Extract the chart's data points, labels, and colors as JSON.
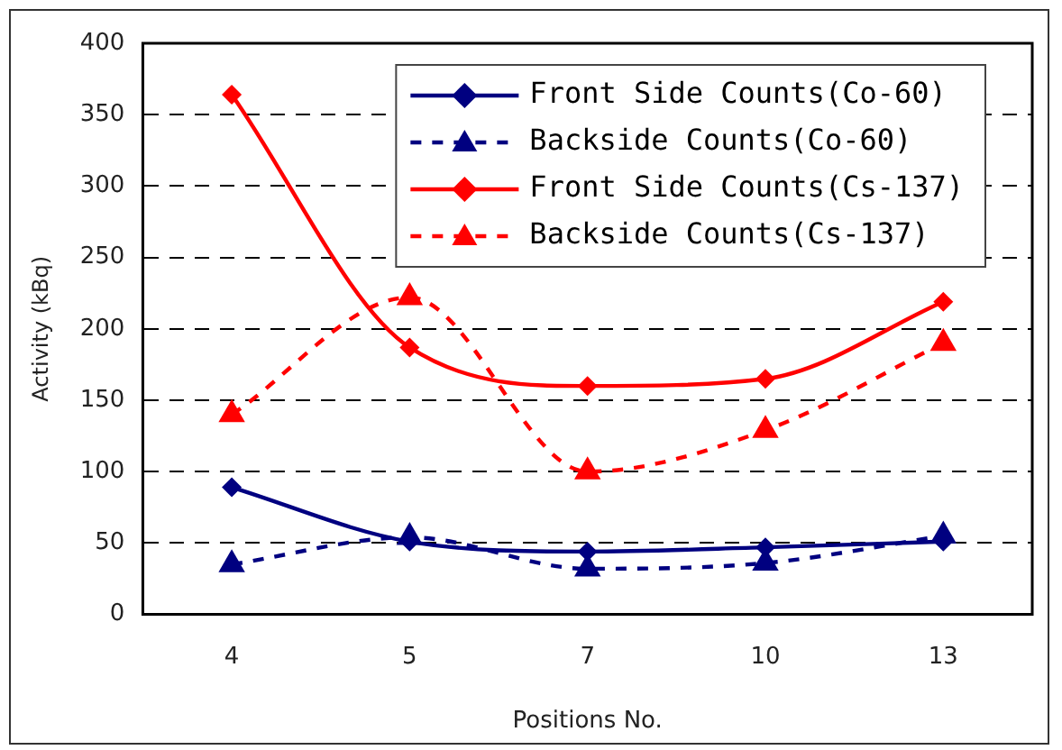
{
  "chart_data": {
    "type": "line",
    "xlabel": "Positions No.",
    "ylabel": "Activity (kBq)",
    "categories": [
      "4",
      "5",
      "7",
      "10",
      "13"
    ],
    "series": [
      {
        "name": "Front Side Counts(Co-60)",
        "color": "#000080",
        "values": [
          89,
          51,
          44,
          47,
          51
        ],
        "marker": "diamond",
        "line_style": "solid"
      },
      {
        "name": "Backside Counts(Co-60)",
        "color": "#000080",
        "values": [
          35,
          54,
          32,
          36,
          55
        ],
        "marker": "triangle",
        "line_style": "dashed"
      },
      {
        "name": "Front Side Counts(Cs-137)",
        "color": "#ff0000",
        "values": [
          364,
          187,
          160,
          165,
          219
        ],
        "marker": "diamond",
        "line_style": "solid"
      },
      {
        "name": "Backside Counts(Cs-137)",
        "color": "#ff0000",
        "values": [
          140,
          222,
          100,
          129,
          190
        ],
        "marker": "triangle",
        "line_style": "dashed"
      }
    ],
    "ylim": [
      0,
      400
    ],
    "yticks": [
      0,
      50,
      100,
      150,
      200,
      250,
      300,
      350,
      400
    ],
    "grid": "y",
    "legend": "top right"
  }
}
